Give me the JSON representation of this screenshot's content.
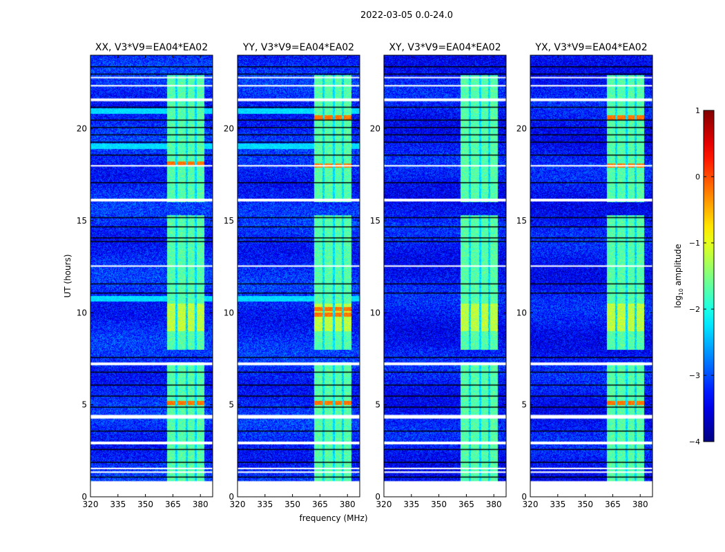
{
  "chart_data": {
    "type": "heatmap",
    "suptitle": "2022-03-05 0.0-24.0",
    "xlabel": "frequency (MHz)",
    "ylabel": "UT (hours)",
    "xlim": [
      320,
      386.7
    ],
    "ylim": [
      0,
      24
    ],
    "xticks": [
      "320",
      "335",
      "350",
      "365",
      "380"
    ],
    "xtick_values": [
      320,
      335,
      350,
      365,
      380
    ],
    "yticks": [
      "0",
      "5",
      "10",
      "15",
      "20"
    ],
    "ytick_values": [
      0,
      5,
      10,
      15,
      20
    ],
    "panels": [
      {
        "title": "XX, V3*V9=EA04*EA02",
        "pol": "XX",
        "hot_ut": [
          5.1,
          18.1
        ],
        "cyan_ut": [
          [
            10.6,
            10.9
          ],
          [
            18.9,
            19.2
          ],
          [
            20.8,
            21.1
          ]
        ]
      },
      {
        "title": "YY, V3*V9=EA04*EA02",
        "pol": "YY",
        "hot_ut": [
          5.1,
          9.9,
          10.2,
          18.0,
          20.6
        ],
        "cyan_ut": [
          [
            10.6,
            10.9
          ],
          [
            18.9,
            19.2
          ],
          [
            20.8,
            21.1
          ]
        ]
      },
      {
        "title": "XY, V3*V9=EA04*EA02",
        "pol": "XY",
        "hot_ut": [],
        "cyan_ut": []
      },
      {
        "title": "YX, V3*V9=EA04*EA02",
        "pol": "YX",
        "hot_ut": [
          5.1,
          18.0,
          20.6
        ],
        "cyan_ut": []
      }
    ],
    "rfi_subbands_mhz": [
      [
        362,
        366.5
      ],
      [
        367.5,
        372
      ],
      [
        373,
        377
      ],
      [
        378,
        382
      ]
    ],
    "background_log_amp": -3.2,
    "rfi_log_amp": -1.7,
    "flagged_ut_ranges": [
      [
        0,
        0.85
      ],
      [
        1.3,
        1.38
      ],
      [
        1.5,
        1.58
      ],
      [
        2.85,
        3.0
      ],
      [
        4.25,
        4.45
      ],
      [
        7.15,
        7.3
      ],
      [
        12.5,
        12.58
      ],
      [
        16.05,
        16.2
      ],
      [
        17.95,
        18.03
      ],
      [
        21.5,
        21.65
      ],
      [
        22.3,
        22.38
      ],
      [
        22.75,
        22.82
      ]
    ],
    "scan_gap_ut": [
      1.1,
      1.9,
      2.6,
      3.6,
      4.9,
      5.5,
      6.1,
      6.8,
      7.6,
      11.1,
      11.6,
      13.9,
      14.1,
      14.7,
      15.2,
      17.1,
      18.6,
      19.3,
      19.7,
      20.1,
      20.5,
      21.2,
      23.0,
      23.4
    ],
    "colorbar": {
      "label": "log10 amplitude",
      "label_main": "log",
      "label_sub": "10",
      "label_rest": " amplitude",
      "range": [
        -4,
        1
      ],
      "ticks": [
        "1",
        "0",
        "−1",
        "−2",
        "−3",
        "−4"
      ],
      "tick_values": [
        1,
        0,
        -1,
        -2,
        -3,
        -4
      ],
      "colormap": "jet"
    }
  }
}
